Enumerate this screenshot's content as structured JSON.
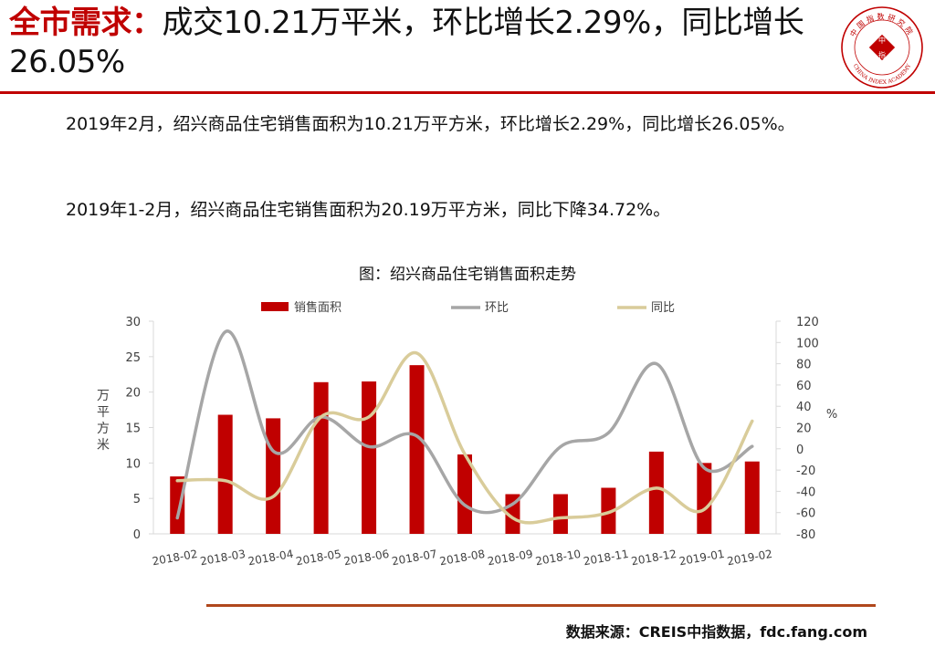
{
  "header": {
    "title_highlight": "全市需求：",
    "title_rest": "成交10.21万平米，环比增长2.29%，同比增长26.05%"
  },
  "logo": {
    "top_text": "中国指数研究院",
    "center_text_1": "中",
    "center_text_2": "指",
    "bottom_text": "CHINA INDEX ACADEMY",
    "color": "#c00000"
  },
  "body": {
    "paragraph_1": "2019年2月，绍兴商品住宅销售面积为10.21万平方米，环比增长2.29%，同比增长26.05%。",
    "paragraph_2": "2019年1-2月，绍兴商品住宅销售面积为20.19万平方米，同比下降34.72%。"
  },
  "chart_title": "图：绍兴商品住宅销售面积走势",
  "footer": {
    "source": "数据来源：CREIS中指数据，fdc.fang.com"
  },
  "colors": {
    "accent": "#c00000",
    "bar": "#c00000",
    "line_mom": "#a6a6a6",
    "line_yoy": "#d9cc9a",
    "bottom_rule": "#b0471c",
    "axis": "#d9d9d9"
  },
  "chart_data": {
    "type": "bar",
    "categories": [
      "2018-02",
      "2018-03",
      "2018-04",
      "2018-05",
      "2018-06",
      "2018-07",
      "2018-08",
      "2018-09",
      "2018-10",
      "2018-11",
      "2018-12",
      "2019-01",
      "2019-02"
    ],
    "series": [
      {
        "name": "销售面积",
        "type": "bar",
        "axis": "left",
        "values": [
          8.1,
          16.8,
          16.3,
          21.4,
          21.5,
          23.8,
          11.2,
          5.6,
          5.6,
          6.5,
          11.6,
          10.0,
          10.21
        ]
      },
      {
        "name": "环比",
        "type": "line",
        "axis": "right",
        "values": [
          -65,
          110,
          -2,
          30,
          2,
          12,
          -53,
          -52,
          2,
          15,
          80,
          -18,
          2.29
        ]
      },
      {
        "name": "同比",
        "type": "line",
        "axis": "right",
        "values": [
          -30,
          -30,
          -45,
          30,
          30,
          90,
          -5,
          -65,
          -65,
          -60,
          -37,
          -57,
          26.05
        ]
      }
    ],
    "ylabel": "万平方米",
    "ylim": [
      0,
      30
    ],
    "yticks": [
      0,
      5,
      10,
      15,
      20,
      25,
      30
    ],
    "y2label": "%",
    "y2lim": [
      -80,
      120
    ],
    "y2ticks": [
      -80,
      -60,
      -40,
      -20,
      0,
      20,
      40,
      60,
      80,
      100,
      120
    ],
    "legend_position": "top",
    "grid": false
  }
}
